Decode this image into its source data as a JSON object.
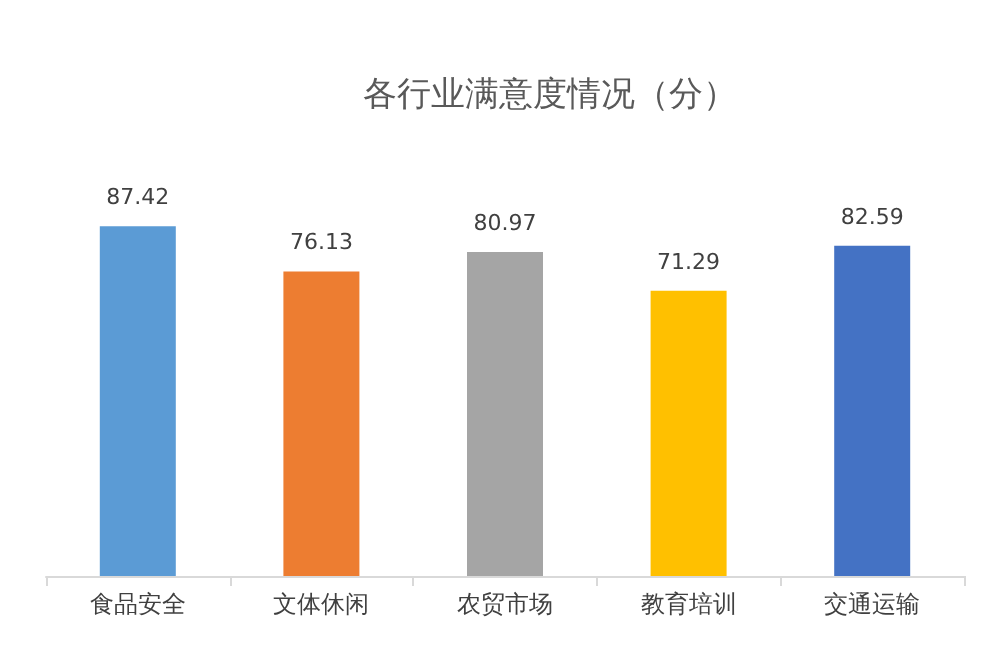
{
  "chart_data": {
    "type": "bar",
    "title": "各行业满意度情况（分）",
    "categories": [
      "食品安全",
      "文体休闲",
      "农贸市场",
      "教育培训",
      "交通运输"
    ],
    "values": [
      87.42,
      76.13,
      80.97,
      71.29,
      82.59
    ],
    "colors": [
      "#5b9bd5",
      "#ed7d31",
      "#a5a5a5",
      "#ffc000",
      "#4472c4"
    ],
    "data_labels": true
  }
}
